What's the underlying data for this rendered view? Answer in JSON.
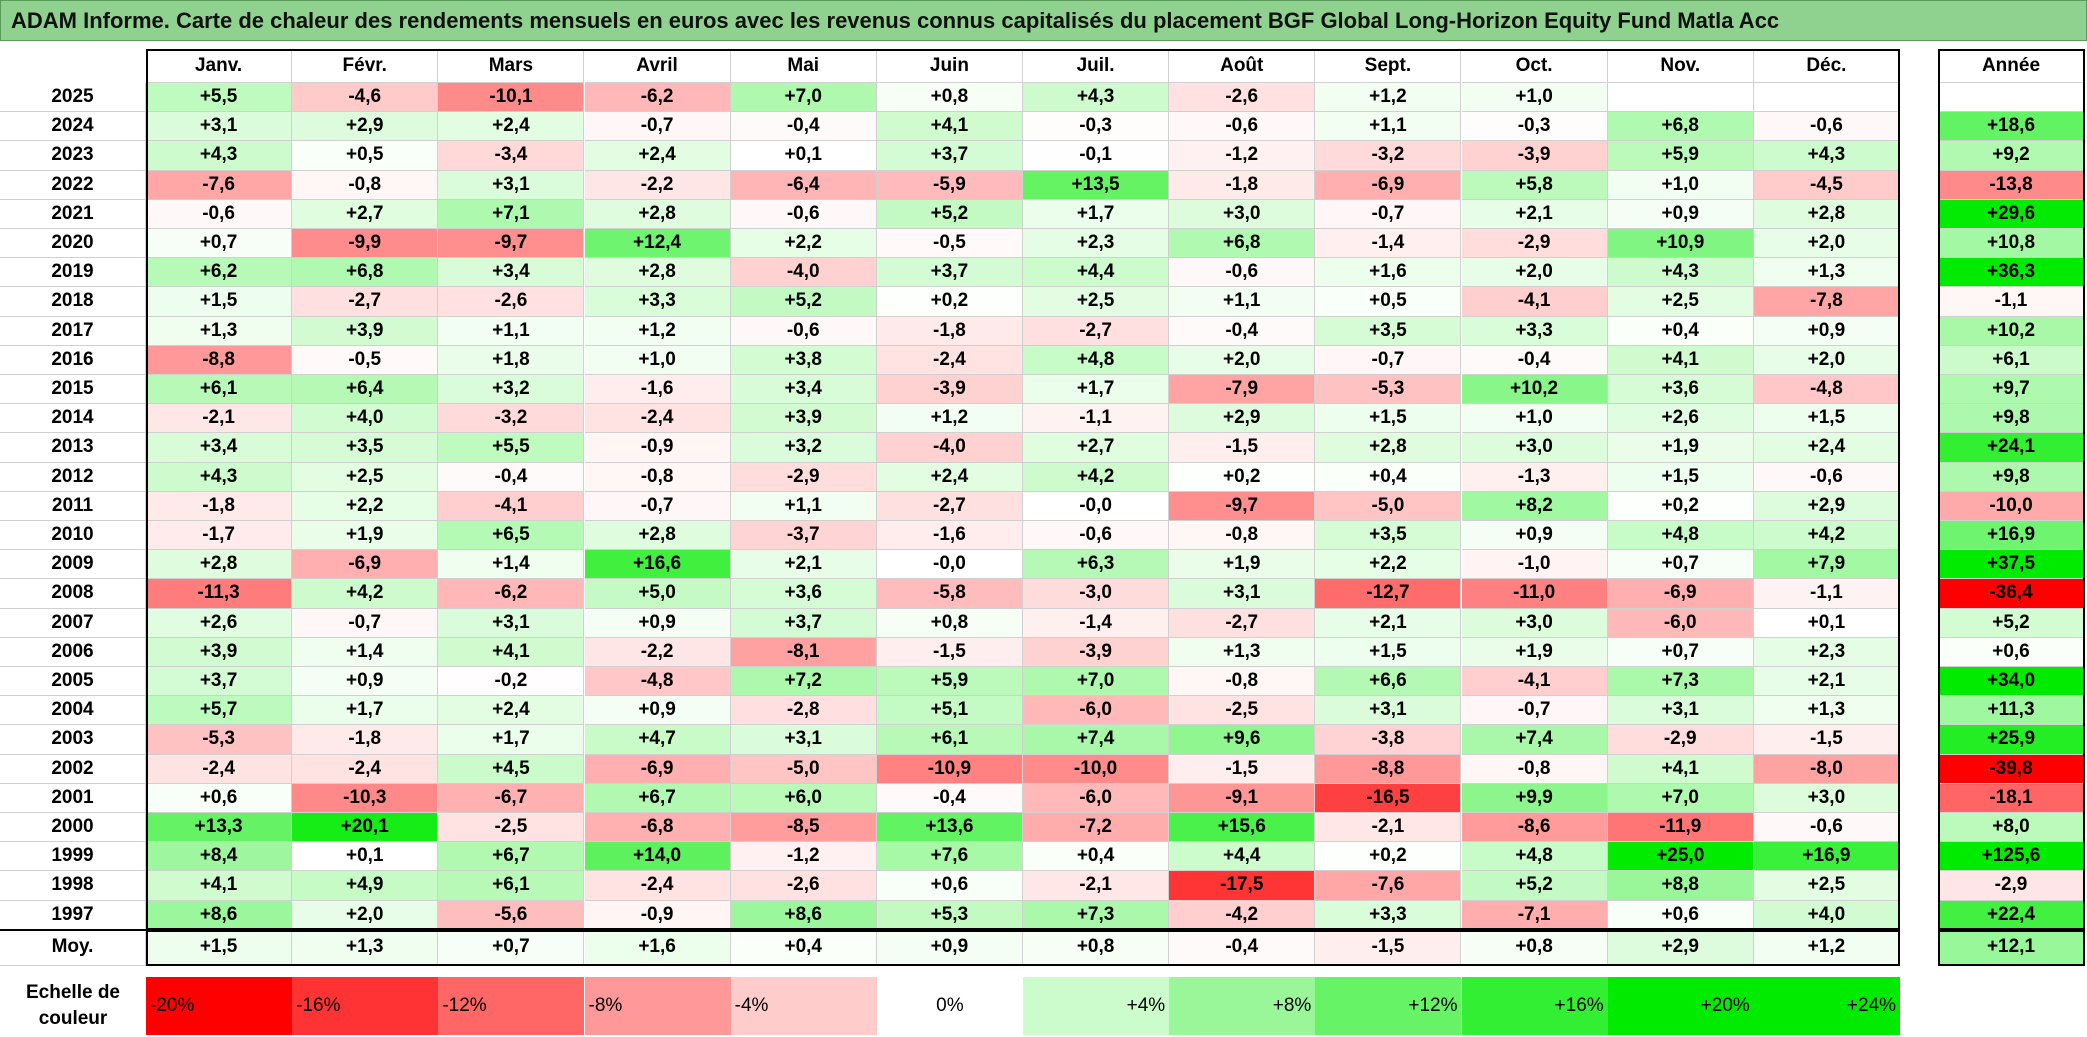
{
  "title": "ADAM Informe. Carte de chaleur des rendements mensuels en euros avec les revenus connus capitalisés du placement BGF Global Long-Horizon Equity Fund Matla Acc",
  "table": {
    "columns": [
      "Janv.",
      "Févr.",
      "Mars",
      "Avril",
      "Mai",
      "Juin",
      "Juil.",
      "Août",
      "Sept.",
      "Oct.",
      "Nov.",
      "Déc."
    ],
    "annual_header": "Année",
    "rows": [
      {
        "label": "2025",
        "months": [
          "+5,5",
          "-4,6",
          "-10,1",
          "-6,2",
          "+7,0",
          "+0,8",
          "+4,3",
          "-2,6",
          "+1,2",
          "+1,0",
          null,
          null
        ],
        "annual": null
      },
      {
        "label": "2024",
        "months": [
          "+3,1",
          "+2,9",
          "+2,4",
          "-0,7",
          "-0,4",
          "+4,1",
          "-0,3",
          "-0,6",
          "+1,1",
          "-0,3",
          "+6,8",
          "-0,6"
        ],
        "annual": "+18,6"
      },
      {
        "label": "2023",
        "months": [
          "+4,3",
          "+0,5",
          "-3,4",
          "+2,4",
          "+0,1",
          "+3,7",
          "-0,1",
          "-1,2",
          "-3,2",
          "-3,9",
          "+5,9",
          "+4,3"
        ],
        "annual": "+9,2"
      },
      {
        "label": "2022",
        "months": [
          "-7,6",
          "-0,8",
          "+3,1",
          "-2,2",
          "-6,4",
          "-5,9",
          "+13,5",
          "-1,8",
          "-6,9",
          "+5,8",
          "+1,0",
          "-4,5"
        ],
        "annual": "-13,8"
      },
      {
        "label": "2021",
        "months": [
          "-0,6",
          "+2,7",
          "+7,1",
          "+2,8",
          "-0,6",
          "+5,2",
          "+1,7",
          "+3,0",
          "-0,7",
          "+2,1",
          "+0,9",
          "+2,8"
        ],
        "annual": "+29,6"
      },
      {
        "label": "2020",
        "months": [
          "+0,7",
          "-9,9",
          "-9,7",
          "+12,4",
          "+2,2",
          "-0,5",
          "+2,3",
          "+6,8",
          "-1,4",
          "-2,9",
          "+10,9",
          "+2,0"
        ],
        "annual": "+10,8"
      },
      {
        "label": "2019",
        "months": [
          "+6,2",
          "+6,8",
          "+3,4",
          "+2,8",
          "-4,0",
          "+3,7",
          "+4,4",
          "-0,6",
          "+1,6",
          "+2,0",
          "+4,3",
          "+1,3"
        ],
        "annual": "+36,3"
      },
      {
        "label": "2018",
        "months": [
          "+1,5",
          "-2,7",
          "-2,6",
          "+3,3",
          "+5,2",
          "+0,2",
          "+2,5",
          "+1,1",
          "+0,5",
          "-4,1",
          "+2,5",
          "-7,8"
        ],
        "annual": "-1,1"
      },
      {
        "label": "2017",
        "months": [
          "+1,3",
          "+3,9",
          "+1,1",
          "+1,2",
          "-0,6",
          "-1,8",
          "-2,7",
          "-0,4",
          "+3,5",
          "+3,3",
          "+0,4",
          "+0,9"
        ],
        "annual": "+10,2"
      },
      {
        "label": "2016",
        "months": [
          "-8,8",
          "-0,5",
          "+1,8",
          "+1,0",
          "+3,8",
          "-2,4",
          "+4,8",
          "+2,0",
          "-0,7",
          "-0,4",
          "+4,1",
          "+2,0"
        ],
        "annual": "+6,1"
      },
      {
        "label": "2015",
        "months": [
          "+6,1",
          "+6,4",
          "+3,2",
          "-1,6",
          "+3,4",
          "-3,9",
          "+1,7",
          "-7,9",
          "-5,3",
          "+10,2",
          "+3,6",
          "-4,8"
        ],
        "annual": "+9,7"
      },
      {
        "label": "2014",
        "months": [
          "-2,1",
          "+4,0",
          "-3,2",
          "-2,4",
          "+3,9",
          "+1,2",
          "-1,1",
          "+2,9",
          "+1,5",
          "+1,0",
          "+2,6",
          "+1,5"
        ],
        "annual": "+9,8"
      },
      {
        "label": "2013",
        "months": [
          "+3,4",
          "+3,5",
          "+5,5",
          "-0,9",
          "+3,2",
          "-4,0",
          "+2,7",
          "-1,5",
          "+2,8",
          "+3,0",
          "+1,9",
          "+2,4"
        ],
        "annual": "+24,1"
      },
      {
        "label": "2012",
        "months": [
          "+4,3",
          "+2,5",
          "-0,4",
          "-0,8",
          "-2,9",
          "+2,4",
          "+4,2",
          "+0,2",
          "+0,4",
          "-1,3",
          "+1,5",
          "-0,6"
        ],
        "annual": "+9,8"
      },
      {
        "label": "2011",
        "months": [
          "-1,8",
          "+2,2",
          "-4,1",
          "-0,7",
          "+1,1",
          "-2,7",
          "-0,0",
          "-9,7",
          "-5,0",
          "+8,2",
          "+0,2",
          "+2,9"
        ],
        "annual": "-10,0"
      },
      {
        "label": "2010",
        "months": [
          "-1,7",
          "+1,9",
          "+6,5",
          "+2,8",
          "-3,7",
          "-1,6",
          "-0,6",
          "-0,8",
          "+3,5",
          "+0,9",
          "+4,8",
          "+4,2"
        ],
        "annual": "+16,9"
      },
      {
        "label": "2009",
        "months": [
          "+2,8",
          "-6,9",
          "+1,4",
          "+16,6",
          "+2,1",
          "-0,0",
          "+6,3",
          "+1,9",
          "+2,2",
          "-1,0",
          "+0,7",
          "+7,9"
        ],
        "annual": "+37,5"
      },
      {
        "label": "2008",
        "months": [
          "-11,3",
          "+4,2",
          "-6,2",
          "+5,0",
          "+3,6",
          "-5,8",
          "-3,0",
          "+3,1",
          "-12,7",
          "-11,0",
          "-6,9",
          "-1,1"
        ],
        "annual": "-36,4"
      },
      {
        "label": "2007",
        "months": [
          "+2,6",
          "-0,7",
          "+3,1",
          "+0,9",
          "+3,7",
          "+0,8",
          "-1,4",
          "-2,7",
          "+2,1",
          "+3,0",
          "-6,0",
          "+0,1"
        ],
        "annual": "+5,2"
      },
      {
        "label": "2006",
        "months": [
          "+3,9",
          "+1,4",
          "+4,1",
          "-2,2",
          "-8,1",
          "-1,5",
          "-3,9",
          "+1,3",
          "+1,5",
          "+1,9",
          "+0,7",
          "+2,3"
        ],
        "annual": "+0,6"
      },
      {
        "label": "2005",
        "months": [
          "+3,7",
          "+0,9",
          "-0,2",
          "-4,8",
          "+7,2",
          "+5,9",
          "+7,0",
          "-0,8",
          "+6,6",
          "-4,1",
          "+7,3",
          "+2,1"
        ],
        "annual": "+34,0"
      },
      {
        "label": "2004",
        "months": [
          "+5,7",
          "+1,7",
          "+2,4",
          "+0,9",
          "-2,8",
          "+5,1",
          "-6,0",
          "-2,5",
          "+3,1",
          "-0,7",
          "+3,1",
          "+1,3"
        ],
        "annual": "+11,3"
      },
      {
        "label": "2003",
        "months": [
          "-5,3",
          "-1,8",
          "+1,7",
          "+4,7",
          "+3,1",
          "+6,1",
          "+7,4",
          "+9,6",
          "-3,8",
          "+7,4",
          "-2,9",
          "-1,5"
        ],
        "annual": "+25,9"
      },
      {
        "label": "2002",
        "months": [
          "-2,4",
          "-2,4",
          "+4,5",
          "-6,9",
          "-5,0",
          "-10,9",
          "-10,0",
          "-1,5",
          "-8,8",
          "-0,8",
          "+4,1",
          "-8,0"
        ],
        "annual": "-39,8"
      },
      {
        "label": "2001",
        "months": [
          "+0,6",
          "-10,3",
          "-6,7",
          "+6,7",
          "+6,0",
          "-0,4",
          "-6,0",
          "-9,1",
          "-16,5",
          "+9,9",
          "+7,0",
          "+3,0"
        ],
        "annual": "-18,1"
      },
      {
        "label": "2000",
        "months": [
          "+13,3",
          "+20,1",
          "-2,5",
          "-6,8",
          "-8,5",
          "+13,6",
          "-7,2",
          "+15,6",
          "-2,1",
          "-8,6",
          "-11,9",
          "-0,6"
        ],
        "annual": "+8,0"
      },
      {
        "label": "1999",
        "months": [
          "+8,4",
          "+0,1",
          "+6,7",
          "+14,0",
          "-1,2",
          "+7,6",
          "+0,4",
          "+4,4",
          "+0,2",
          "+4,8",
          "+25,0",
          "+16,9"
        ],
        "annual": "+125,6"
      },
      {
        "label": "1998",
        "months": [
          "+4,1",
          "+4,9",
          "+6,1",
          "-2,4",
          "-2,6",
          "+0,6",
          "-2,1",
          "-17,5",
          "-7,6",
          "+5,2",
          "+8,8",
          "+2,5"
        ],
        "annual": "-2,9"
      },
      {
        "label": "1997",
        "months": [
          "+8,6",
          "+2,0",
          "-5,6",
          "-0,9",
          "+8,6",
          "+5,3",
          "+7,3",
          "-4,2",
          "+3,3",
          "-7,1",
          "+0,6",
          "+4,0"
        ],
        "annual": "+22,4"
      }
    ],
    "average": {
      "label": "Moy.",
      "months": [
        "+1,5",
        "+1,3",
        "+0,7",
        "+1,6",
        "+0,4",
        "+0,9",
        "+0,8",
        "-0,4",
        "-1,5",
        "+0,8",
        "+2,9",
        "+1,2"
      ],
      "annual": "+12,1"
    }
  },
  "legend": {
    "title": "Echelle de couleur",
    "items": [
      "-20%",
      "-16%",
      "-12%",
      "-8%",
      "-4%",
      "0%",
      "+4%",
      "+8%",
      "+12%",
      "+16%",
      "+20%",
      "+24%"
    ]
  }
}
